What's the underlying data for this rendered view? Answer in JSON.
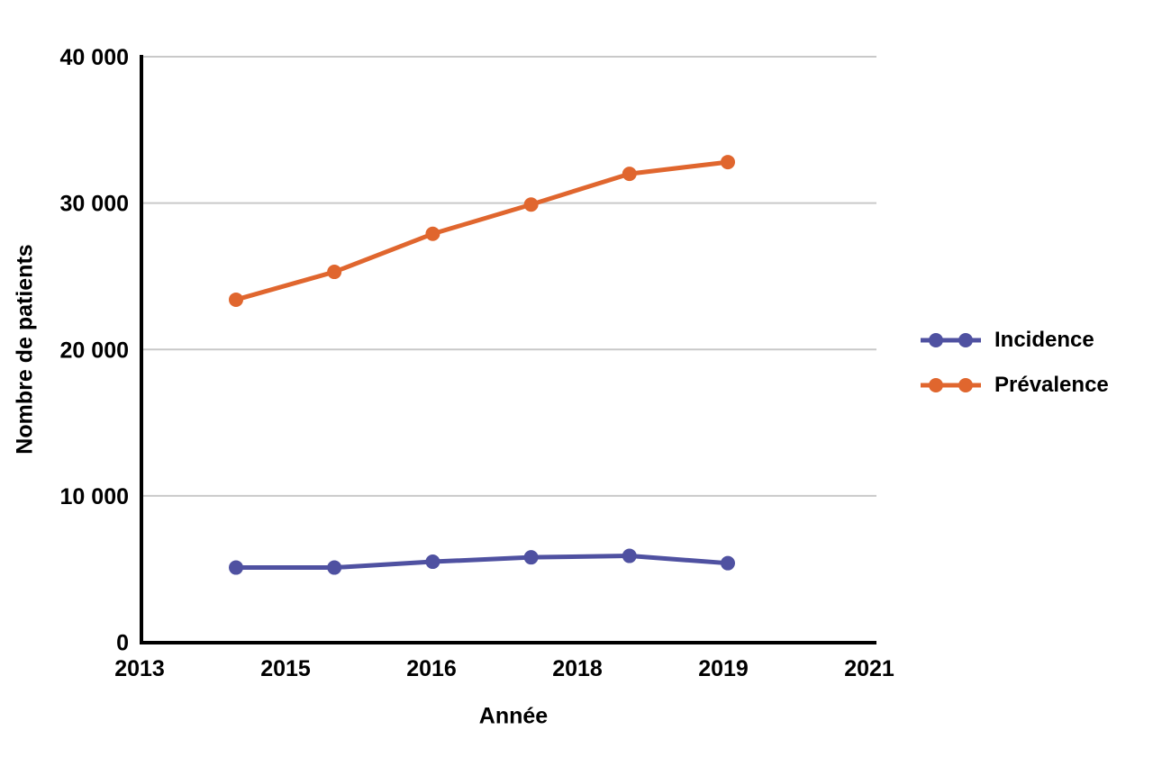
{
  "chart_data": {
    "type": "line",
    "title": "",
    "xlabel": "Année",
    "ylabel": "Nombre de patients",
    "x": [
      2014,
      2015,
      2016,
      2017,
      2018,
      2019
    ],
    "series": [
      {
        "name": "Incidence",
        "color": "#4F51A1",
        "values": [
          5100,
          5100,
          5500,
          5800,
          5900,
          5400
        ]
      },
      {
        "name": "Prévalence",
        "color": "#E0662E",
        "values": [
          23400,
          25300,
          27900,
          29900,
          32000,
          32800
        ]
      }
    ],
    "xlim": [
      2013,
      2021
    ],
    "ylim": [
      0,
      40000
    ],
    "x_tick_labels": [
      "2013",
      "2015",
      "2016",
      "2018",
      "2019",
      "2021"
    ],
    "y_tick_values": [
      0,
      10000,
      20000,
      30000,
      40000
    ],
    "y_tick_labels": [
      "0",
      "10 000",
      "20 000",
      "30 000",
      "40 000"
    ],
    "grid": "horizontal",
    "legend_position": "right",
    "colors": {
      "grid": "#C9C9C9",
      "axis": "#000000",
      "text": "#000000",
      "background": "#FFFFFF"
    }
  }
}
